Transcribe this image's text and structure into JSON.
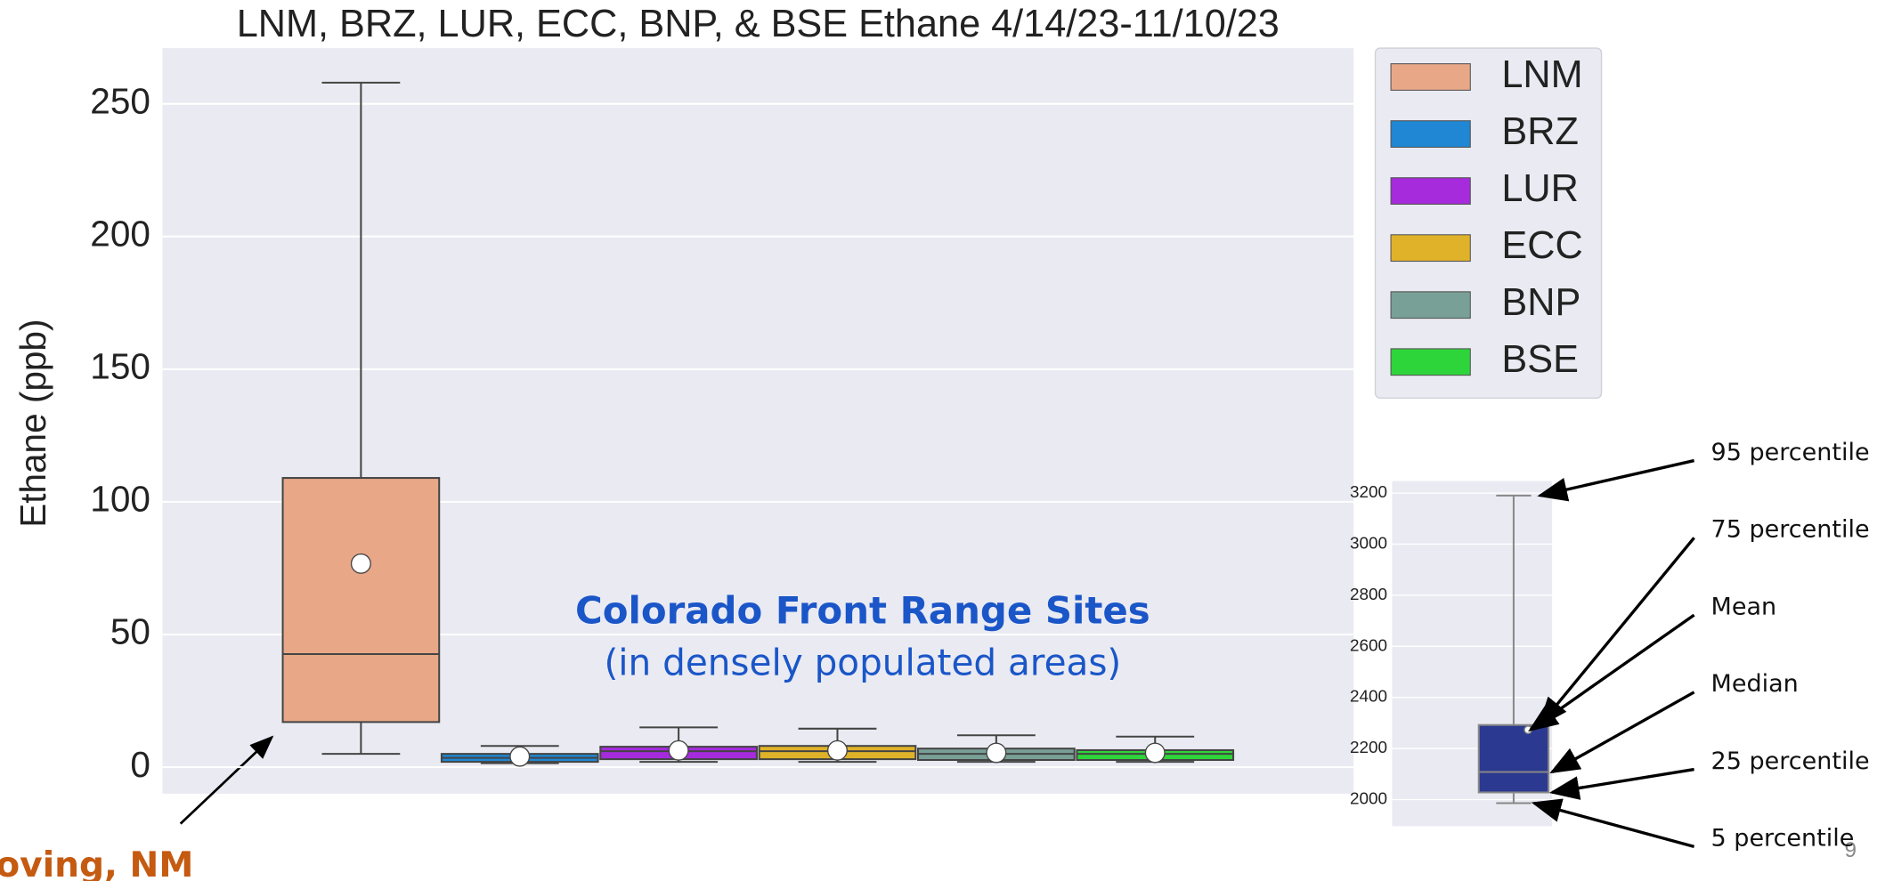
{
  "chart_data": [
    {
      "type": "box",
      "title": "LNM, BRZ, LUR, ECC, BNP, & BSE Ethane 4/14/23-11/10/23",
      "y_label": "Ethane (ppb)",
      "categories": [
        "LNM",
        "BRZ",
        "LUR",
        "ECC",
        "BNP",
        "BSE"
      ],
      "colors": [
        "#e8a888",
        "#1f87d4",
        "#a52bdc",
        "#e0b229",
        "#78a096",
        "#2ed53a"
      ],
      "whislo": [
        5,
        1.5,
        2,
        2,
        2,
        2
      ],
      "q1": [
        17,
        2,
        3,
        3,
        2.7,
        2.7
      ],
      "median": [
        42.6,
        3.5,
        6,
        6,
        5,
        5
      ],
      "q3": [
        109,
        5,
        7.7,
        8,
        7,
        6.4
      ],
      "whishi": [
        258,
        8,
        15,
        14.5,
        12,
        11.5
      ],
      "mean": [
        76.7,
        4,
        6.3,
        6.3,
        5.4,
        5.4
      ],
      "ylim": [
        -10,
        271
      ],
      "yticks": [
        0,
        50,
        100,
        150,
        200,
        250
      ],
      "grid": true,
      "legend": "outside-right",
      "annotations": {
        "region_title": "Colorado Front Range Sites",
        "region_subtitle": "(in densely populated areas)",
        "site_label": "Loving, NM"
      }
    },
    {
      "type": "box",
      "color": "#2b3990",
      "whislo": [
        1986
      ],
      "q1": [
        2028
      ],
      "median": [
        2108
      ],
      "q3": [
        2292
      ],
      "whishi": [
        3190
      ],
      "mean": [
        2273
      ],
      "ylim": [
        1896,
        3247
      ],
      "yticks": [
        2000,
        2200,
        2400,
        2600,
        2800,
        3000,
        3200
      ],
      "grid": true,
      "key_labels": [
        "95 percentile",
        "75 percentile",
        "Mean",
        "Median",
        "25 percentile",
        "5 percentile"
      ]
    }
  ],
  "page_number": "9"
}
